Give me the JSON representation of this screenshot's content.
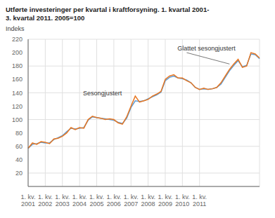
{
  "chart_data": {
    "type": "line",
    "title": "Utførte investeringer per kvartal i kraftforsyning. 1. kvartal 2001-\n3. kvartal 2011. 2005=100",
    "y_label": "Indeks",
    "categories": [
      "1. kv.\n2001",
      null,
      null,
      null,
      "1. kv.\n2002",
      null,
      null,
      null,
      "1. kv.\n2003",
      null,
      null,
      null,
      "1. kv.\n2004",
      null,
      null,
      null,
      "1. kv.\n2005",
      null,
      null,
      null,
      "1. kv.\n2006",
      null,
      null,
      null,
      "1. kv.\n2007",
      null,
      null,
      null,
      "1. kv.\n2008",
      null,
      null,
      null,
      "1. kv.\n2009",
      null,
      null,
      null,
      "1. kv.\n2010",
      null,
      null,
      null,
      "1. kv.\n2011",
      null,
      null,
      null,
      null,
      null,
      null,
      null,
      null,
      null,
      null,
      null,
      null,
      null,
      null
    ],
    "series": [
      {
        "name": "Glattet sesongjustert",
        "color": "#5B9BD5",
        "values": [
          57,
          63,
          64,
          66,
          65,
          65,
          70,
          73,
          76,
          82,
          87,
          86,
          87,
          88,
          99,
          104,
          103,
          102,
          101,
          100,
          99,
          96,
          94,
          102,
          118,
          128,
          127,
          128,
          131,
          134,
          137,
          141,
          158,
          163,
          165,
          162,
          161,
          159,
          155,
          148,
          145,
          146,
          145,
          146,
          148,
          153,
          163,
          173,
          181,
          188,
          179,
          181,
          198,
          197,
          191
        ]
      },
      {
        "name": "Sesongjustert",
        "color": "#E87722",
        "values": [
          57,
          65,
          63,
          67,
          66,
          64,
          71,
          72,
          75,
          80,
          88,
          85,
          88,
          87,
          100,
          105,
          103,
          102,
          100,
          101,
          100,
          95,
          93,
          104,
          120,
          135,
          126,
          128,
          130,
          135,
          138,
          142,
          160,
          165,
          167,
          162,
          162,
          158,
          155,
          148,
          145,
          147,
          145,
          146,
          148,
          155,
          165,
          175,
          183,
          190,
          178,
          180,
          200,
          198,
          192
        ]
      }
    ],
    "annotations": [
      "Sesongjustert",
      "Glattet sesongjustert"
    ],
    "ylim": [
      0,
      220
    ],
    "yticks": [
      20,
      40,
      60,
      80,
      100,
      120,
      140,
      160,
      180,
      200,
      220
    ],
    "grid": true
  }
}
